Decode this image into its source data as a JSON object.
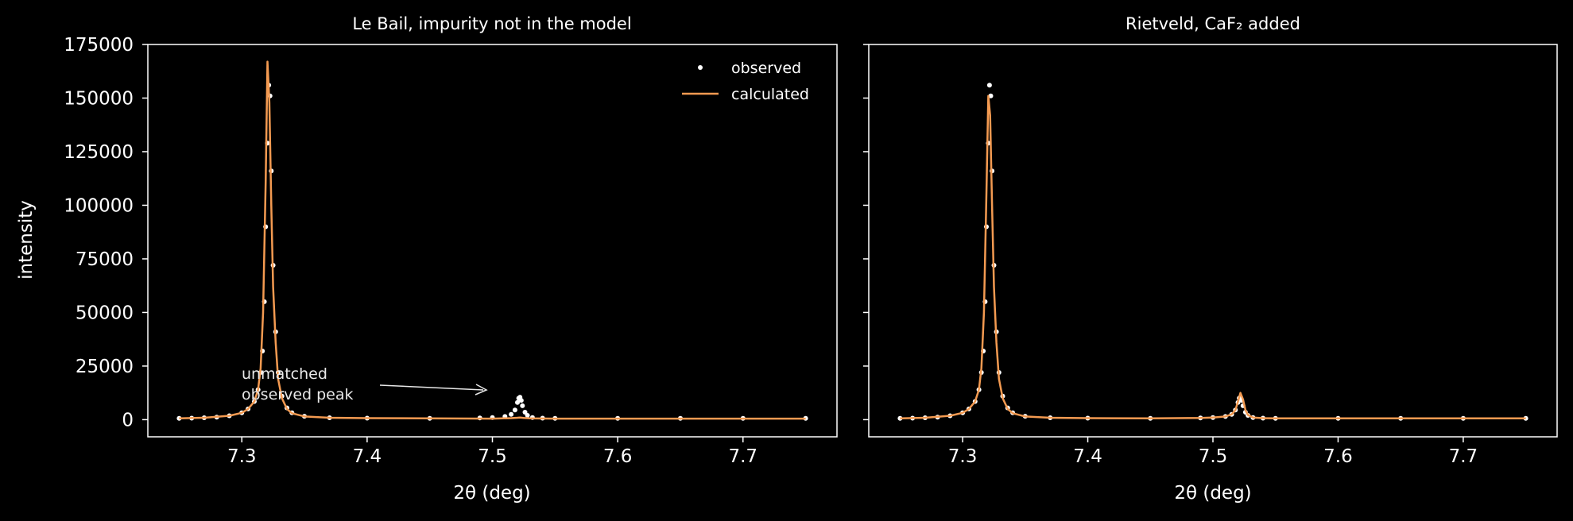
{
  "chart_data": [
    {
      "type": "line",
      "title": "Le Bail, impurity not in the model",
      "xlabel": "2θ (deg)",
      "ylabel": "intensity",
      "xlim": [
        7.225,
        7.775
      ],
      "ylim": [
        -8000,
        175000
      ],
      "xticks": [
        7.3,
        7.4,
        7.5,
        7.6,
        7.7
      ],
      "xtick_labels": [
        "7.3",
        "7.4",
        "7.5",
        "7.6",
        "7.7"
      ],
      "yticks": [
        0,
        25000,
        50000,
        75000,
        100000,
        125000,
        150000,
        175000
      ],
      "ytick_labels": [
        "0",
        "25000",
        "50000",
        "75000",
        "100000",
        "125000",
        "150000",
        "175000"
      ],
      "legend": {
        "placement": "top-right",
        "entries": [
          {
            "label": "observed",
            "marker": "dot"
          },
          {
            "label": "calculated",
            "marker": "line"
          }
        ]
      },
      "annotation": {
        "lines": [
          "unmatched",
          "observed peak"
        ],
        "text_at": [
          7.3,
          15000
        ],
        "arrow_to": [
          7.5,
          14000
        ]
      },
      "series": [
        {
          "name": "observed",
          "style": "points",
          "color": "#ffffff",
          "x": [
            7.25,
            7.26,
            7.27,
            7.28,
            7.29,
            7.3,
            7.305,
            7.31,
            7.313,
            7.315,
            7.3165,
            7.318,
            7.319,
            7.3205,
            7.3215,
            7.3225,
            7.3235,
            7.325,
            7.327,
            7.329,
            7.332,
            7.336,
            7.34,
            7.35,
            7.37,
            7.4,
            7.45,
            7.49,
            7.5,
            7.51,
            7.515,
            7.518,
            7.52,
            7.521,
            7.522,
            7.523,
            7.524,
            7.526,
            7.528,
            7.532,
            7.54,
            7.55,
            7.6,
            7.65,
            7.7,
            7.75
          ],
          "y": [
            600,
            700,
            900,
            1200,
            1800,
            3200,
            5000,
            8500,
            14000,
            22000,
            32000,
            55000,
            90000,
            129000,
            156000,
            151000,
            116000,
            72000,
            41000,
            22000,
            11000,
            5500,
            3200,
            1600,
            900,
            700,
            600,
            800,
            1000,
            1500,
            2500,
            4500,
            8000,
            10000,
            10500,
            9000,
            6500,
            3500,
            2000,
            1000,
            700,
            600,
            600,
            600,
            600,
            600
          ]
        },
        {
          "name": "calculated",
          "style": "line",
          "color": "#f39a51",
          "x": [
            7.25,
            7.27,
            7.29,
            7.3,
            7.305,
            7.31,
            7.313,
            7.315,
            7.317,
            7.319,
            7.3205,
            7.322,
            7.3235,
            7.325,
            7.327,
            7.329,
            7.332,
            7.336,
            7.34,
            7.35,
            7.37,
            7.4,
            7.5,
            7.515,
            7.52,
            7.522,
            7.525,
            7.53,
            7.55,
            7.6,
            7.7,
            7.75
          ],
          "y": [
            600,
            900,
            1800,
            3200,
            5000,
            8500,
            14000,
            24000,
            50000,
            110000,
            167000,
            148000,
            100000,
            62000,
            36000,
            19000,
            10000,
            5000,
            3000,
            1500,
            900,
            700,
            500,
            700,
            900,
            1000,
            800,
            600,
            500,
            500,
            500,
            500
          ]
        }
      ]
    },
    {
      "type": "line",
      "title": "Rietveld, CaF₂ added",
      "xlabel": "2θ (deg)",
      "ylabel": "",
      "xlim": [
        7.225,
        7.775
      ],
      "ylim": [
        -8000,
        175000
      ],
      "xticks": [
        7.3,
        7.4,
        7.5,
        7.6,
        7.7
      ],
      "xtick_labels": [
        "7.3",
        "7.4",
        "7.5",
        "7.6",
        "7.7"
      ],
      "yticks": [
        0,
        25000,
        50000,
        75000,
        100000,
        125000,
        150000,
        175000
      ],
      "ytick_labels": [],
      "series": [
        {
          "name": "observed",
          "style": "points",
          "color": "#ffffff",
          "x": [
            7.25,
            7.26,
            7.27,
            7.28,
            7.29,
            7.3,
            7.305,
            7.31,
            7.313,
            7.315,
            7.3165,
            7.318,
            7.319,
            7.3205,
            7.3215,
            7.3225,
            7.3235,
            7.325,
            7.327,
            7.329,
            7.332,
            7.336,
            7.34,
            7.35,
            7.37,
            7.4,
            7.45,
            7.49,
            7.5,
            7.51,
            7.515,
            7.518,
            7.52,
            7.521,
            7.522,
            7.523,
            7.524,
            7.526,
            7.528,
            7.532,
            7.54,
            7.55,
            7.6,
            7.65,
            7.7,
            7.75
          ],
          "y": [
            600,
            700,
            900,
            1200,
            1800,
            3200,
            5000,
            8500,
            14000,
            22000,
            32000,
            55000,
            90000,
            129000,
            156000,
            151000,
            116000,
            72000,
            41000,
            22000,
            11000,
            5500,
            3200,
            1600,
            900,
            700,
            600,
            800,
            1000,
            1500,
            2500,
            4500,
            8000,
            10000,
            10500,
            9000,
            6500,
            3500,
            2000,
            1000,
            700,
            600,
            600,
            600,
            600,
            600
          ]
        },
        {
          "name": "calculated",
          "style": "line",
          "color": "#f39a51",
          "x": [
            7.25,
            7.27,
            7.29,
            7.3,
            7.305,
            7.31,
            7.313,
            7.315,
            7.317,
            7.319,
            7.3205,
            7.322,
            7.3235,
            7.325,
            7.327,
            7.329,
            7.332,
            7.336,
            7.34,
            7.35,
            7.37,
            7.4,
            7.45,
            7.49,
            7.5,
            7.51,
            7.515,
            7.518,
            7.52,
            7.522,
            7.524,
            7.526,
            7.528,
            7.532,
            7.54,
            7.55,
            7.6,
            7.7,
            7.75
          ],
          "y": [
            600,
            900,
            1800,
            3200,
            5000,
            8500,
            14000,
            24000,
            50000,
            105000,
            151000,
            142000,
            100000,
            62000,
            36000,
            19000,
            10000,
            5000,
            3000,
            1500,
            900,
            700,
            600,
            800,
            1000,
            1500,
            2500,
            4500,
            8500,
            12500,
            9500,
            4500,
            2200,
            1000,
            700,
            600,
            600,
            600,
            600
          ]
        }
      ]
    }
  ]
}
